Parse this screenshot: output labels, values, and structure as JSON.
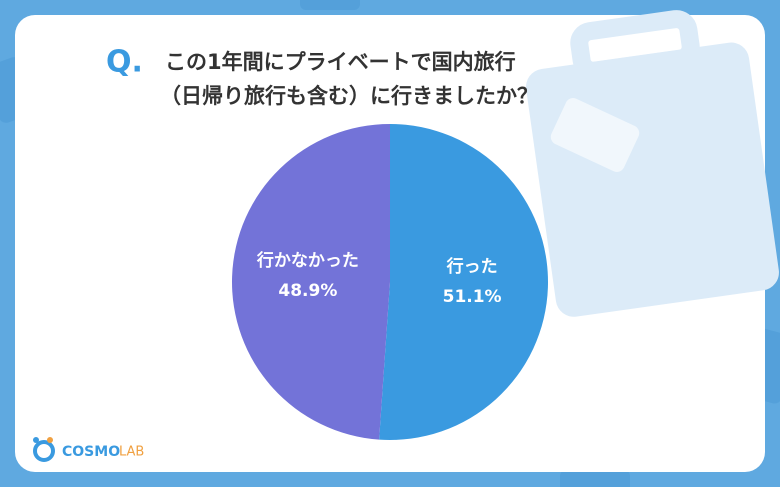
{
  "chart_data": {
    "type": "pie",
    "title_marker": "Q.",
    "title": [
      "この1年間にプライベートで国内旅行",
      "（日帰り旅行も含む）に行きましたか？"
    ],
    "categories": [
      "行った",
      "行かなかった"
    ],
    "values": [
      51.1,
      48.9
    ],
    "value_labels": [
      "51.1%",
      "48.9%"
    ],
    "colors": [
      "#3a9ae0",
      "#7373d8"
    ]
  },
  "logo": {
    "primary": "COSMO",
    "secondary": "LAB"
  }
}
